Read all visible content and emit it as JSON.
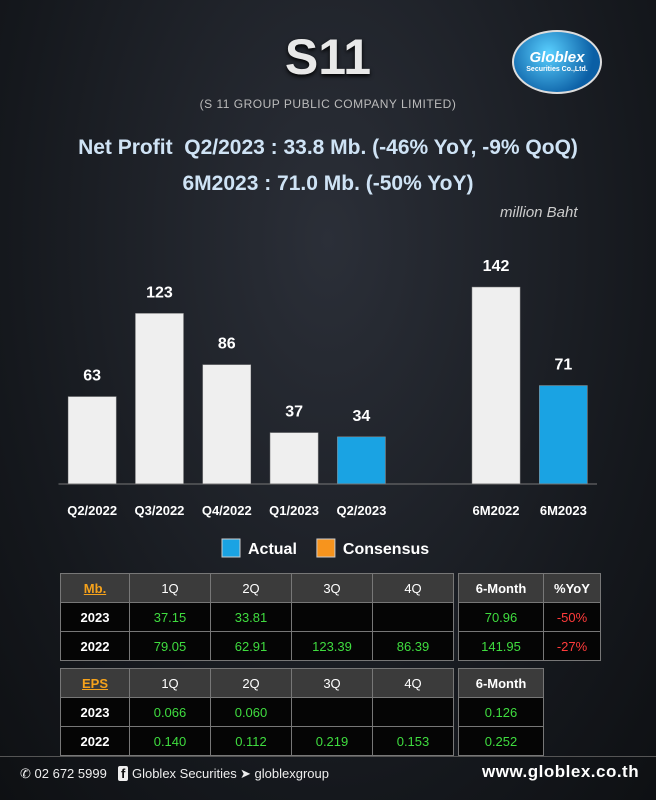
{
  "header": {
    "title": "S11",
    "subtitle": "(S 11 GROUP PUBLIC COMPANY LIMITED)",
    "logo": "Globlex",
    "logo_sub": "Securities Co.,Ltd."
  },
  "headline": [
    "Net Profit  Q2/2023 : 33.8 Mb. (-46% YoY, -9% QoQ)",
    "6M2023 : 71.0 Mb. (-50% YoY)"
  ],
  "unit_note": "million Baht",
  "chart_data": {
    "type": "bar",
    "categories": [
      "Q2/2022",
      "Q3/2022",
      "Q4/2022",
      "Q1/2023",
      "Q2/2023",
      null,
      "6M2022",
      "6M2023"
    ],
    "values": [
      63,
      123,
      86,
      37,
      34,
      null,
      142,
      71
    ],
    "colors": [
      "#efefef",
      "#efefef",
      "#efefef",
      "#efefef",
      "#1aa3e3",
      null,
      "#efefef",
      "#1aa3e3"
    ],
    "ylim": [
      0,
      150
    ],
    "legend": [
      {
        "name": "Actual",
        "color": "#1aa3e3"
      },
      {
        "name": "Consensus",
        "color": "#f7941d"
      }
    ]
  },
  "tables": [
    {
      "header": [
        "Mb.",
        "1Q",
        "2Q",
        "3Q",
        "4Q"
      ],
      "rows": [
        [
          "2023",
          "37.15",
          "33.81",
          null,
          null
        ],
        [
          "2022",
          "79.05",
          "62.91",
          "123.39",
          "86.39"
        ]
      ],
      "side_header": [
        "6-Month",
        "%YoY"
      ],
      "side_rows": [
        [
          "70.96",
          "-50%"
        ],
        [
          "141.95",
          "-27%"
        ]
      ]
    },
    {
      "header": [
        "EPS",
        "1Q",
        "2Q",
        "3Q",
        "4Q"
      ],
      "rows": [
        [
          "2023",
          "0.066",
          "0.060",
          null,
          null
        ],
        [
          "2022",
          "0.140",
          "0.112",
          "0.219",
          "0.153"
        ]
      ],
      "side_header": [
        "6-Month"
      ],
      "side_rows": [
        [
          "0.126"
        ],
        [
          "0.252"
        ]
      ]
    }
  ],
  "footer": {
    "phone": "02 672 5999",
    "facebook": "Globlex Securities",
    "telegram": "globlexgroup",
    "website": "www.globlex.co.th"
  }
}
